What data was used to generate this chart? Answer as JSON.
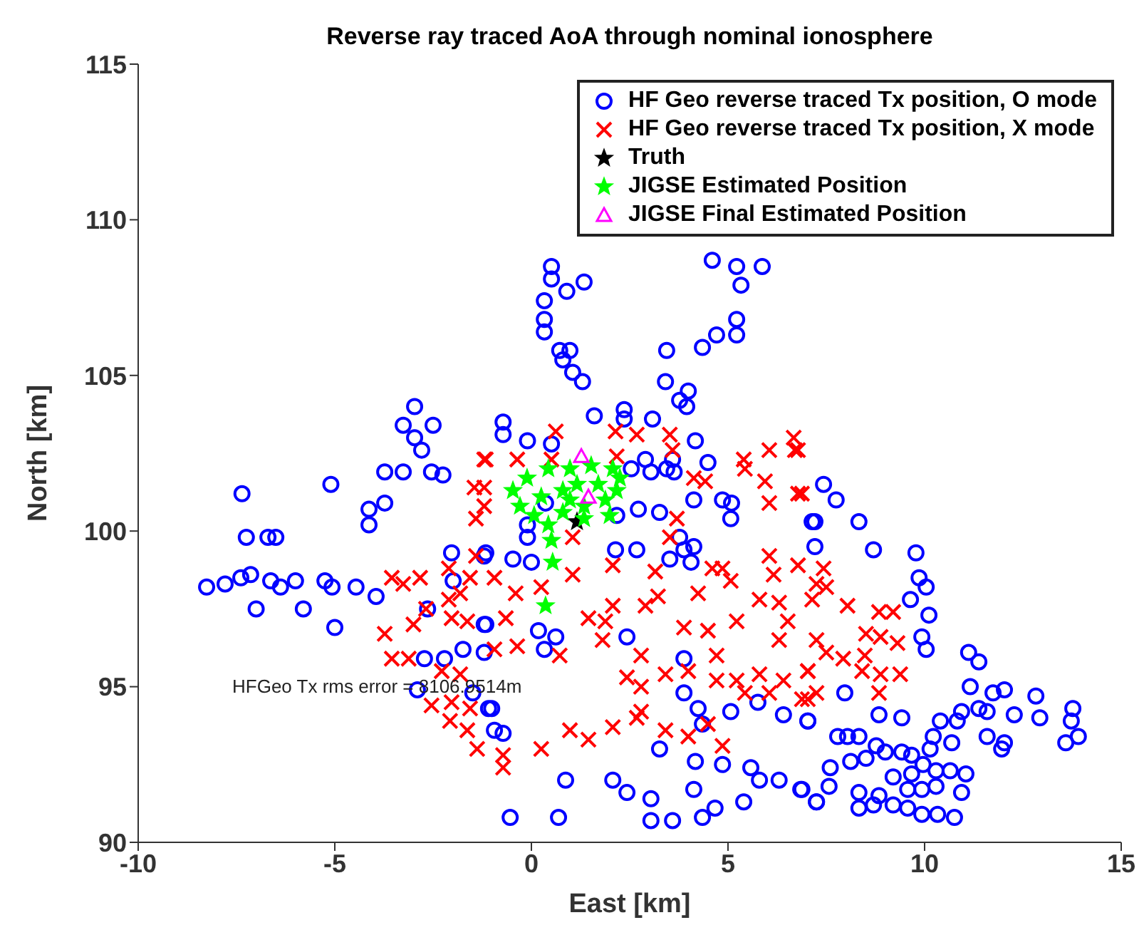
{
  "chart_data": {
    "type": "scatter",
    "title": "Reverse ray traced AoA through nominal ionosphere",
    "xlabel": "East [km]",
    "ylabel": "North [km]",
    "xlim": [
      -10,
      15
    ],
    "xticks": [
      -10,
      -5,
      0,
      5,
      10,
      15
    ],
    "ylim": [
      90,
      115
    ],
    "yticks": [
      90,
      95,
      100,
      105,
      110,
      115
    ],
    "grid": false,
    "legend": "top right",
    "annotations": [
      "HFGeo Tx rms error = 8106.9514m"
    ],
    "series": [
      {
        "name": "HF Geo reverse traced Tx position, O mode",
        "color": "#0000ff",
        "marker": "circle",
        "x": [
          -8.26,
          -7.79,
          -7.39,
          -7.14,
          -7.36,
          -7.25,
          -6.7,
          -6.5,
          -6.63,
          -6.38,
          -6.0,
          -7.0,
          -5.8,
          -5.25,
          -5.0,
          -5.07,
          -4.46,
          -3.95,
          -5.1,
          -4.13,
          -4.13,
          -3.73,
          -3.73,
          -3.26,
          -2.54,
          -2.25,
          -2.97,
          -3.26,
          -2.5,
          -2.79,
          -2.97,
          -2.03,
          -1.99,
          -1.16,
          -1.16,
          -2.64,
          -2.72,
          -2.21,
          -1.74,
          -1.2,
          -2.9,
          -1.49,
          -1.01,
          0.51,
          0.51,
          0.33,
          0.33,
          0.33,
          0.9,
          1.34,
          0.72,
          0.98,
          0.8,
          1.05,
          1.3,
          3.44,
          4.35,
          4.71,
          5.22,
          5.22,
          5.33,
          5.87,
          5.22,
          4.6,
          3.41,
          3.77,
          3.99,
          3.95,
          1.6,
          2.36,
          2.36,
          3.08,
          -0.72,
          -0.72,
          -0.1,
          0.51,
          2.9,
          3.04,
          3.59,
          3.63,
          4.17,
          4.49,
          2.54,
          3.44,
          4.13,
          4.86,
          5.09,
          3.26,
          2.72,
          2.17,
          3.77,
          3.88,
          4.13,
          3.52,
          4.06,
          2.14,
          2.68,
          -0.1,
          -0.1,
          -0.47,
          0.0,
          0.36,
          -1.2,
          0.18,
          0.62,
          0.33,
          2.43,
          -1.2,
          3.88,
          3.88,
          4.24,
          4.35,
          5.07,
          5.76,
          6.41,
          7.03,
          4.86,
          5.58,
          5.8,
          5.4,
          4.13,
          3.26,
          4.17,
          2.07,
          2.43,
          3.04,
          3.04,
          3.59,
          4.35,
          4.67,
          0.87,
          0.69,
          -0.54,
          6.3,
          6.88,
          7.25,
          -0.94,
          -0.72,
          -1.09,
          5.07,
          7.14,
          7.21,
          7.43,
          7.75,
          7.21,
          8.33,
          8.7,
          9.78,
          9.86,
          10.04,
          9.64,
          10.11,
          9.93,
          10.04,
          11.12,
          11.38,
          11.16,
          11.74,
          12.03,
          11.38,
          11.59,
          12.28,
          10.94,
          10.83,
          12.83,
          12.93,
          13.77,
          13.73,
          13.91,
          13.59,
          12.03,
          11.96,
          11.59,
          10.4,
          10.22,
          10.14,
          10.69,
          9.96,
          9.67,
          9.42,
          9.0,
          8.77,
          8.33,
          8.04,
          7.79,
          7.6,
          8.12,
          8.51,
          9.2,
          9.67,
          10.29,
          10.65,
          11.05,
          10.94,
          10.29,
          9.93,
          9.57,
          8.84,
          8.33,
          8.33,
          8.7,
          9.2,
          9.57,
          9.93,
          10.33,
          10.76,
          7.25,
          7.57,
          8.84,
          9.42,
          7.97,
          7.03,
          6.85
        ],
        "values": [
          98.2,
          98.3,
          98.5,
          98.6,
          101.2,
          99.8,
          99.8,
          99.8,
          98.4,
          98.2,
          98.4,
          97.5,
          97.5,
          98.4,
          96.9,
          98.2,
          98.2,
          97.9,
          101.5,
          100.7,
          100.2,
          100.9,
          101.9,
          101.9,
          101.9,
          101.8,
          104.0,
          103.4,
          103.4,
          102.6,
          103.0,
          99.3,
          98.4,
          99.3,
          97.0,
          97.5,
          95.9,
          95.9,
          96.2,
          96.1,
          94.9,
          94.8,
          94.3,
          108.5,
          108.1,
          107.4,
          106.8,
          106.4,
          107.7,
          108.0,
          105.8,
          105.8,
          105.5,
          105.1,
          104.8,
          105.8,
          105.9,
          106.3,
          106.8,
          106.3,
          107.9,
          108.5,
          108.5,
          108.7,
          104.8,
          104.2,
          104.5,
          104.0,
          103.7,
          103.9,
          103.6,
          103.6,
          103.5,
          103.1,
          102.9,
          102.8,
          102.3,
          101.9,
          102.3,
          101.9,
          102.9,
          102.2,
          102.0,
          102.0,
          101.0,
          101.0,
          100.9,
          100.6,
          100.7,
          100.5,
          99.8,
          99.4,
          99.5,
          99.1,
          99.0,
          99.4,
          99.4,
          100.2,
          99.8,
          99.1,
          99.0,
          100.9,
          99.2,
          96.8,
          96.6,
          96.2,
          96.6,
          97.0,
          95.9,
          94.8,
          94.3,
          93.8,
          94.2,
          94.5,
          94.1,
          93.9,
          92.5,
          92.4,
          92.0,
          91.3,
          91.7,
          93.0,
          92.6,
          92.0,
          91.6,
          91.4,
          90.7,
          90.7,
          90.8,
          91.1,
          92.0,
          90.8,
          90.8,
          92.0,
          91.7,
          91.3,
          93.6,
          93.5,
          94.3,
          100.4,
          100.3,
          99.5,
          101.5,
          101.0,
          100.3,
          100.3,
          99.4,
          99.3,
          98.5,
          98.2,
          97.8,
          97.3,
          96.6,
          96.2,
          96.1,
          95.8,
          95.0,
          94.8,
          94.9,
          94.3,
          94.2,
          94.1,
          94.2,
          93.9,
          94.7,
          94.0,
          94.3,
          93.9,
          93.4,
          93.2,
          93.2,
          93.0,
          93.4,
          93.9,
          93.4,
          93.0,
          93.2,
          92.5,
          92.8,
          92.9,
          92.9,
          93.1,
          93.4,
          93.4,
          93.4,
          92.4,
          92.6,
          92.7,
          92.1,
          92.2,
          92.3,
          92.3,
          92.2,
          91.6,
          91.8,
          91.7,
          91.7,
          91.5,
          91.6,
          91.1,
          91.2,
          91.2,
          91.1,
          90.9,
          90.9,
          90.8,
          91.3,
          91.8,
          94.1,
          94.0,
          94.8,
          93.9,
          91.7
        ]
      },
      {
        "name": "HF Geo reverse traced Tx position, X mode",
        "color": "#ff0000",
        "marker": "cross",
        "x": [
          -1.16,
          -1.45,
          -1.2,
          -1.2,
          -1.41,
          -1.41,
          -3.55,
          -2.83,
          -3.26,
          -2.1,
          -1.56,
          -1.81,
          -2.1,
          -3.73,
          -3.0,
          -2.68,
          -2.03,
          -1.63,
          -3.55,
          -3.12,
          -2.28,
          -1.81,
          -2.54,
          -2.03,
          -1.56,
          -2.07,
          -1.63,
          -1.38,
          -1.2,
          -0.36,
          0.62,
          0.51,
          2.14,
          2.68,
          3.52,
          3.59,
          2.17,
          4.13,
          4.42,
          3.7,
          3.52,
          1.05,
          2.07,
          1.05,
          3.15,
          -0.94,
          -0.4,
          0.25,
          1.45,
          2.07,
          1.88,
          2.9,
          3.22,
          4.24,
          4.86,
          4.6,
          5.07,
          3.88,
          4.49,
          5.22,
          -0.65,
          -0.94,
          -0.36,
          0.72,
          1.81,
          2.79,
          2.43,
          3.41,
          3.99,
          4.71,
          5.22,
          5.8,
          2.79,
          2.79,
          4.71,
          5.43,
          6.05,
          0.98,
          1.45,
          2.07,
          2.68,
          3.41,
          3.99,
          4.49,
          4.86,
          0.25,
          -0.72,
          -0.72,
          5.4,
          6.05,
          6.67,
          6.7,
          5.43,
          5.94,
          6.05,
          6.78,
          6.05,
          6.78,
          6.16,
          5.8,
          6.3,
          7.14,
          7.25,
          6.52,
          7.25,
          6.3,
          7.03,
          6.41,
          7.25,
          6.88,
          7.43,
          7.5,
          8.04,
          8.84,
          9.2,
          8.51,
          8.88,
          9.31,
          7.93,
          8.48,
          8.41,
          8.88,
          9.38,
          8.84,
          7.5,
          7.03,
          7.03,
          6.88,
          6.78
        ],
        "values": [
          102.3,
          101.4,
          101.4,
          100.8,
          100.4,
          99.2,
          98.5,
          98.5,
          98.3,
          98.8,
          98.5,
          98.0,
          97.8,
          96.7,
          97.0,
          97.5,
          97.2,
          97.1,
          95.9,
          95.9,
          95.5,
          95.4,
          94.4,
          94.5,
          94.3,
          93.9,
          93.6,
          93.0,
          102.3,
          102.3,
          103.2,
          102.3,
          103.2,
          103.1,
          103.1,
          102.6,
          102.4,
          101.7,
          101.6,
          100.4,
          99.8,
          99.8,
          98.9,
          98.6,
          98.7,
          98.5,
          98.0,
          98.2,
          97.2,
          97.6,
          97.1,
          97.6,
          97.9,
          98.0,
          98.8,
          98.8,
          98.4,
          96.9,
          96.8,
          97.1,
          97.2,
          96.2,
          96.3,
          96.0,
          96.5,
          96.0,
          95.3,
          95.4,
          95.5,
          96.0,
          95.2,
          95.4,
          95.0,
          94.2,
          95.2,
          94.8,
          94.8,
          93.6,
          93.3,
          93.7,
          94.0,
          93.6,
          93.4,
          93.8,
          93.1,
          93.0,
          92.8,
          92.4,
          102.3,
          102.6,
          103.0,
          102.6,
          102.0,
          101.6,
          100.9,
          101.2,
          99.2,
          98.9,
          98.6,
          97.8,
          97.7,
          97.8,
          98.3,
          97.1,
          96.5,
          96.5,
          95.5,
          95.2,
          94.8,
          94.6,
          98.8,
          98.2,
          97.6,
          97.4,
          97.4,
          96.7,
          96.6,
          96.4,
          95.9,
          96.0,
          95.5,
          95.4,
          95.4,
          94.8,
          96.1,
          95.5,
          94.6,
          101.2,
          102.6
        ]
      },
      {
        "name": "Truth",
        "color": "#000000",
        "marker": "star",
        "x": [
          1.16
        ],
        "values": [
          100.3
        ]
      },
      {
        "name": "JIGSE Estimated Position",
        "color": "#00ff00",
        "marker": "star",
        "x": [
          -0.47,
          -0.11,
          0.43,
          0.98,
          1.52,
          2.07,
          2.25,
          2.17,
          1.88,
          1.34,
          0.98,
          0.8,
          1.16,
          1.7,
          0.25,
          -0.29,
          0.07,
          0.43,
          0.8,
          1.34,
          1.99,
          0.51,
          0.54,
          0.36
        ],
        "values": [
          101.3,
          101.7,
          102.0,
          102.0,
          102.1,
          102.0,
          101.7,
          101.3,
          101.0,
          100.8,
          101.0,
          101.3,
          101.5,
          101.5,
          101.1,
          100.8,
          100.5,
          100.2,
          100.6,
          100.4,
          100.5,
          99.7,
          99.0,
          97.6
        ]
      },
      {
        "name": "JIGSE Final Estimated Position",
        "color": "#ff00ff",
        "marker": "triangle",
        "x": [
          1.45,
          1.27
        ],
        "values": [
          101.1,
          102.4
        ]
      }
    ]
  }
}
